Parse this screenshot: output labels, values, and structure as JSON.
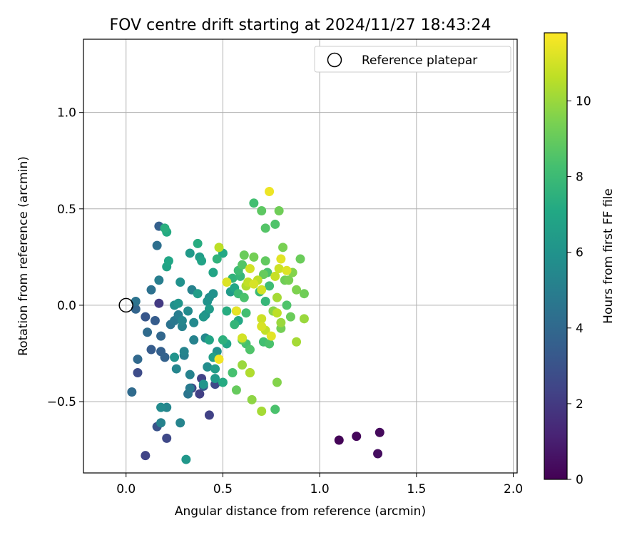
{
  "chart_data": {
    "type": "scatter",
    "title": "FOV centre drift starting at 2024/11/27 18:43:24",
    "xlabel": "Angular distance from reference (arcmin)",
    "ylabel": "Rotation from reference (arcmin)",
    "xlim": [
      -0.22,
      2.02
    ],
    "ylim": [
      -0.87,
      1.38
    ],
    "xticks": [
      0.0,
      0.5,
      1.0,
      1.5,
      2.0
    ],
    "xtick_labels": [
      "0.0",
      "0.5",
      "1.0",
      "1.5",
      "2.0"
    ],
    "yticks": [
      -0.5,
      0.0,
      0.5,
      1.0
    ],
    "ytick_labels": [
      "−0.5",
      "0.0",
      "0.5",
      "1.0"
    ],
    "grid": true,
    "legend": {
      "position": "top-right",
      "label": "Reference platepar"
    },
    "reference_point": {
      "x": 0.0,
      "y": 0.0
    },
    "colorbar": {
      "label": "Hours from first FF file",
      "colormap": "viridis",
      "range": [
        0,
        11.8
      ],
      "ticks": [
        0,
        2,
        4,
        6,
        8,
        10
      ],
      "tick_labels": [
        "0",
        "2",
        "4",
        "6",
        "8",
        "10"
      ]
    },
    "points": [
      {
        "x": 1.1,
        "y": -0.7,
        "t": 0.1
      },
      {
        "x": 1.19,
        "y": -0.68,
        "t": 0.2
      },
      {
        "x": 1.31,
        "y": -0.66,
        "t": 0.3
      },
      {
        "x": 1.3,
        "y": -0.77,
        "t": 0.4
      },
      {
        "x": 0.1,
        "y": -0.78,
        "t": 2.4
      },
      {
        "x": 0.21,
        "y": -0.69,
        "t": 2.6
      },
      {
        "x": 0.16,
        "y": -0.63,
        "t": 3.0
      },
      {
        "x": 0.06,
        "y": -0.35,
        "t": 2.7
      },
      {
        "x": 0.17,
        "y": 0.01,
        "t": 2.0
      },
      {
        "x": 0.17,
        "y": 0.41,
        "t": 3.6
      },
      {
        "x": 0.16,
        "y": 0.31,
        "t": 4.3
      },
      {
        "x": 0.43,
        "y": -0.57,
        "t": 2.3
      },
      {
        "x": 0.38,
        "y": -0.46,
        "t": 2.2
      },
      {
        "x": 0.34,
        "y": -0.43,
        "t": 2.5
      },
      {
        "x": 0.39,
        "y": -0.38,
        "t": 2.3
      },
      {
        "x": 0.46,
        "y": -0.41,
        "t": 2.6
      },
      {
        "x": 0.4,
        "y": -0.42,
        "t": 3.3
      },
      {
        "x": 0.1,
        "y": -0.06,
        "t": 3.2
      },
      {
        "x": 0.15,
        "y": -0.08,
        "t": 3.4
      },
      {
        "x": 0.05,
        "y": -0.02,
        "t": 3.8
      },
      {
        "x": 0.05,
        "y": 0.02,
        "t": 4.5
      },
      {
        "x": 0.13,
        "y": 0.08,
        "t": 4.4
      },
      {
        "x": 0.17,
        "y": 0.13,
        "t": 5.0
      },
      {
        "x": 0.11,
        "y": -0.14,
        "t": 4.1
      },
      {
        "x": 0.18,
        "y": -0.16,
        "t": 3.9
      },
      {
        "x": 0.18,
        "y": -0.24,
        "t": 3.6
      },
      {
        "x": 0.13,
        "y": -0.23,
        "t": 3.4
      },
      {
        "x": 0.2,
        "y": -0.27,
        "t": 3.7
      },
      {
        "x": 0.06,
        "y": -0.28,
        "t": 4.0
      },
      {
        "x": 0.03,
        "y": -0.45,
        "t": 4.1
      },
      {
        "x": 0.18,
        "y": -0.53,
        "t": 5.6
      },
      {
        "x": 0.21,
        "y": -0.53,
        "t": 5.4
      },
      {
        "x": 0.18,
        "y": -0.61,
        "t": 5.2
      },
      {
        "x": 0.28,
        "y": -0.61,
        "t": 5.3
      },
      {
        "x": 0.31,
        "y": -0.8,
        "t": 6.2
      },
      {
        "x": 0.32,
        "y": -0.46,
        "t": 4.6
      },
      {
        "x": 0.33,
        "y": -0.43,
        "t": 4.8
      },
      {
        "x": 0.33,
        "y": -0.36,
        "t": 5.2
      },
      {
        "x": 0.26,
        "y": -0.33,
        "t": 5.4
      },
      {
        "x": 0.3,
        "y": -0.26,
        "t": 5.0
      },
      {
        "x": 0.3,
        "y": -0.24,
        "t": 5.3
      },
      {
        "x": 0.25,
        "y": -0.27,
        "t": 6.0
      },
      {
        "x": 0.35,
        "y": -0.18,
        "t": 5.2
      },
      {
        "x": 0.41,
        "y": -0.17,
        "t": 5.5
      },
      {
        "x": 0.42,
        "y": -0.32,
        "t": 5.7
      },
      {
        "x": 0.4,
        "y": -0.41,
        "t": 6.1
      },
      {
        "x": 0.46,
        "y": -0.38,
        "t": 6.3
      },
      {
        "x": 0.46,
        "y": -0.33,
        "t": 6.5
      },
      {
        "x": 0.45,
        "y": -0.27,
        "t": 6.6
      },
      {
        "x": 0.47,
        "y": -0.24,
        "t": 5.9
      },
      {
        "x": 0.43,
        "y": -0.18,
        "t": 6.9
      },
      {
        "x": 0.5,
        "y": -0.4,
        "t": 7.2
      },
      {
        "x": 0.23,
        "y": -0.1,
        "t": 4.5
      },
      {
        "x": 0.25,
        "y": -0.08,
        "t": 4.7
      },
      {
        "x": 0.27,
        "y": -0.05,
        "t": 5.0
      },
      {
        "x": 0.29,
        "y": -0.08,
        "t": 5.4
      },
      {
        "x": 0.29,
        "y": -0.11,
        "t": 5.2
      },
      {
        "x": 0.32,
        "y": -0.03,
        "t": 5.6
      },
      {
        "x": 0.35,
        "y": -0.09,
        "t": 5.5
      },
      {
        "x": 0.25,
        "y": 0.0,
        "t": 5.8
      },
      {
        "x": 0.27,
        "y": 0.01,
        "t": 6.1
      },
      {
        "x": 0.34,
        "y": 0.08,
        "t": 5.2
      },
      {
        "x": 0.37,
        "y": 0.06,
        "t": 6.5
      },
      {
        "x": 0.28,
        "y": 0.12,
        "t": 5.9
      },
      {
        "x": 0.21,
        "y": 0.2,
        "t": 6.8
      },
      {
        "x": 0.22,
        "y": 0.23,
        "t": 7.0
      },
      {
        "x": 0.2,
        "y": 0.4,
        "t": 7.4
      },
      {
        "x": 0.21,
        "y": 0.38,
        "t": 7.2
      },
      {
        "x": 0.33,
        "y": 0.27,
        "t": 6.3
      },
      {
        "x": 0.38,
        "y": 0.25,
        "t": 6.5
      },
      {
        "x": 0.39,
        "y": 0.23,
        "t": 6.8
      },
      {
        "x": 0.37,
        "y": 0.32,
        "t": 7.3
      },
      {
        "x": 0.4,
        "y": -0.06,
        "t": 6.2
      },
      {
        "x": 0.41,
        "y": -0.05,
        "t": 5.9
      },
      {
        "x": 0.43,
        "y": -0.02,
        "t": 6.4
      },
      {
        "x": 0.42,
        "y": 0.02,
        "t": 6.0
      },
      {
        "x": 0.43,
        "y": 0.04,
        "t": 5.7
      },
      {
        "x": 0.45,
        "y": 0.06,
        "t": 5.9
      },
      {
        "x": 0.45,
        "y": 0.17,
        "t": 6.9
      },
      {
        "x": 0.47,
        "y": 0.24,
        "t": 7.6
      },
      {
        "x": 0.5,
        "y": 0.27,
        "t": 7.1
      },
      {
        "x": 0.52,
        "y": -0.2,
        "t": 7.0
      },
      {
        "x": 0.5,
        "y": -0.18,
        "t": 7.5
      },
      {
        "x": 0.52,
        "y": -0.03,
        "t": 7.3
      },
      {
        "x": 0.54,
        "y": 0.07,
        "t": 6.4
      },
      {
        "x": 0.55,
        "y": 0.14,
        "t": 7.6
      },
      {
        "x": 0.56,
        "y": 0.09,
        "t": 7.0
      },
      {
        "x": 0.56,
        "y": -0.1,
        "t": 7.7
      },
      {
        "x": 0.58,
        "y": -0.08,
        "t": 7.1
      },
      {
        "x": 0.57,
        "y": -0.03,
        "t": 6.3
      },
      {
        "x": 0.58,
        "y": 0.18,
        "t": 8.1
      },
      {
        "x": 0.6,
        "y": 0.21,
        "t": 8.6
      },
      {
        "x": 0.59,
        "y": 0.15,
        "t": 7.8
      },
      {
        "x": 0.58,
        "y": 0.06,
        "t": 8.0
      },
      {
        "x": 0.61,
        "y": 0.04,
        "t": 8.4
      },
      {
        "x": 0.62,
        "y": -0.04,
        "t": 8.2
      },
      {
        "x": 0.6,
        "y": -0.18,
        "t": 8.7
      },
      {
        "x": 0.62,
        "y": -0.2,
        "t": 8.3
      },
      {
        "x": 0.64,
        "y": -0.23,
        "t": 8.5
      },
      {
        "x": 0.55,
        "y": -0.35,
        "t": 8.3
      },
      {
        "x": 0.57,
        "y": -0.44,
        "t": 9.0
      },
      {
        "x": 0.64,
        "y": -0.35,
        "t": 8.4
      },
      {
        "x": 0.66,
        "y": 0.53,
        "t": 8.2
      },
      {
        "x": 0.7,
        "y": 0.49,
        "t": 8.8
      },
      {
        "x": 0.72,
        "y": 0.4,
        "t": 8.6
      },
      {
        "x": 0.77,
        "y": 0.42,
        "t": 8.5
      },
      {
        "x": 0.79,
        "y": 0.49,
        "t": 9.2
      },
      {
        "x": 0.81,
        "y": 0.3,
        "t": 9.4
      },
      {
        "x": 0.61,
        "y": 0.26,
        "t": 9.1
      },
      {
        "x": 0.66,
        "y": 0.25,
        "t": 9.3
      },
      {
        "x": 0.72,
        "y": 0.23,
        "t": 8.9
      },
      {
        "x": 0.71,
        "y": 0.16,
        "t": 9.0
      },
      {
        "x": 0.73,
        "y": 0.17,
        "t": 8.4
      },
      {
        "x": 0.74,
        "y": 0.1,
        "t": 8.1
      },
      {
        "x": 0.69,
        "y": 0.07,
        "t": 8.0
      },
      {
        "x": 0.72,
        "y": 0.02,
        "t": 7.8
      },
      {
        "x": 0.76,
        "y": -0.03,
        "t": 7.9
      },
      {
        "x": 0.71,
        "y": -0.19,
        "t": 8.2
      },
      {
        "x": 0.74,
        "y": -0.2,
        "t": 8.4
      },
      {
        "x": 0.77,
        "y": -0.54,
        "t": 8.4
      },
      {
        "x": 0.7,
        "y": -0.55,
        "t": 10.2
      },
      {
        "x": 0.65,
        "y": -0.49,
        "t": 9.8
      },
      {
        "x": 0.64,
        "y": -0.35,
        "t": 10.4
      },
      {
        "x": 0.6,
        "y": -0.31,
        "t": 10.0
      },
      {
        "x": 0.78,
        "y": -0.4,
        "t": 9.6
      },
      {
        "x": 0.88,
        "y": -0.19,
        "t": 10.2
      },
      {
        "x": 0.8,
        "y": -0.12,
        "t": 9.3
      },
      {
        "x": 0.8,
        "y": -0.09,
        "t": 10.0
      },
      {
        "x": 0.82,
        "y": 0.13,
        "t": 9.2
      },
      {
        "x": 0.84,
        "y": 0.13,
        "t": 9.4
      },
      {
        "x": 0.86,
        "y": 0.17,
        "t": 9.6
      },
      {
        "x": 0.83,
        "y": 0.0,
        "t": 8.5
      },
      {
        "x": 0.85,
        "y": -0.06,
        "t": 9.1
      },
      {
        "x": 0.88,
        "y": 0.08,
        "t": 9.5
      },
      {
        "x": 0.92,
        "y": 0.06,
        "t": 9.2
      },
      {
        "x": 0.92,
        "y": -0.07,
        "t": 10.0
      },
      {
        "x": 0.9,
        "y": 0.24,
        "t": 9.1
      },
      {
        "x": 0.78,
        "y": 0.04,
        "t": 10.2
      },
      {
        "x": 0.78,
        "y": -0.04,
        "t": 10.6
      },
      {
        "x": 0.76,
        "y": -0.03,
        "t": 9.7
      },
      {
        "x": 0.74,
        "y": 0.59,
        "t": 11.5
      },
      {
        "x": 0.8,
        "y": 0.24,
        "t": 11.3
      },
      {
        "x": 0.79,
        "y": 0.19,
        "t": 10.9
      },
      {
        "x": 0.83,
        "y": 0.18,
        "t": 11.2
      },
      {
        "x": 0.77,
        "y": 0.15,
        "t": 10.8
      },
      {
        "x": 0.7,
        "y": 0.08,
        "t": 11.0
      },
      {
        "x": 0.68,
        "y": 0.13,
        "t": 10.6
      },
      {
        "x": 0.66,
        "y": 0.11,
        "t": 11.1
      },
      {
        "x": 0.63,
        "y": 0.12,
        "t": 10.7
      },
      {
        "x": 0.52,
        "y": 0.12,
        "t": 11.2
      },
      {
        "x": 0.64,
        "y": 0.19,
        "t": 11.0
      },
      {
        "x": 0.57,
        "y": -0.03,
        "t": 11.4
      },
      {
        "x": 0.7,
        "y": -0.07,
        "t": 10.9
      },
      {
        "x": 0.7,
        "y": -0.11,
        "t": 11.1
      },
      {
        "x": 0.72,
        "y": -0.13,
        "t": 10.7
      },
      {
        "x": 0.75,
        "y": -0.16,
        "t": 11.3
      },
      {
        "x": 0.6,
        "y": -0.17,
        "t": 11.0
      },
      {
        "x": 0.48,
        "y": -0.28,
        "t": 11.6
      },
      {
        "x": 0.48,
        "y": 0.3,
        "t": 10.6
      },
      {
        "x": 0.62,
        "y": 0.1,
        "t": 10.4
      }
    ]
  }
}
